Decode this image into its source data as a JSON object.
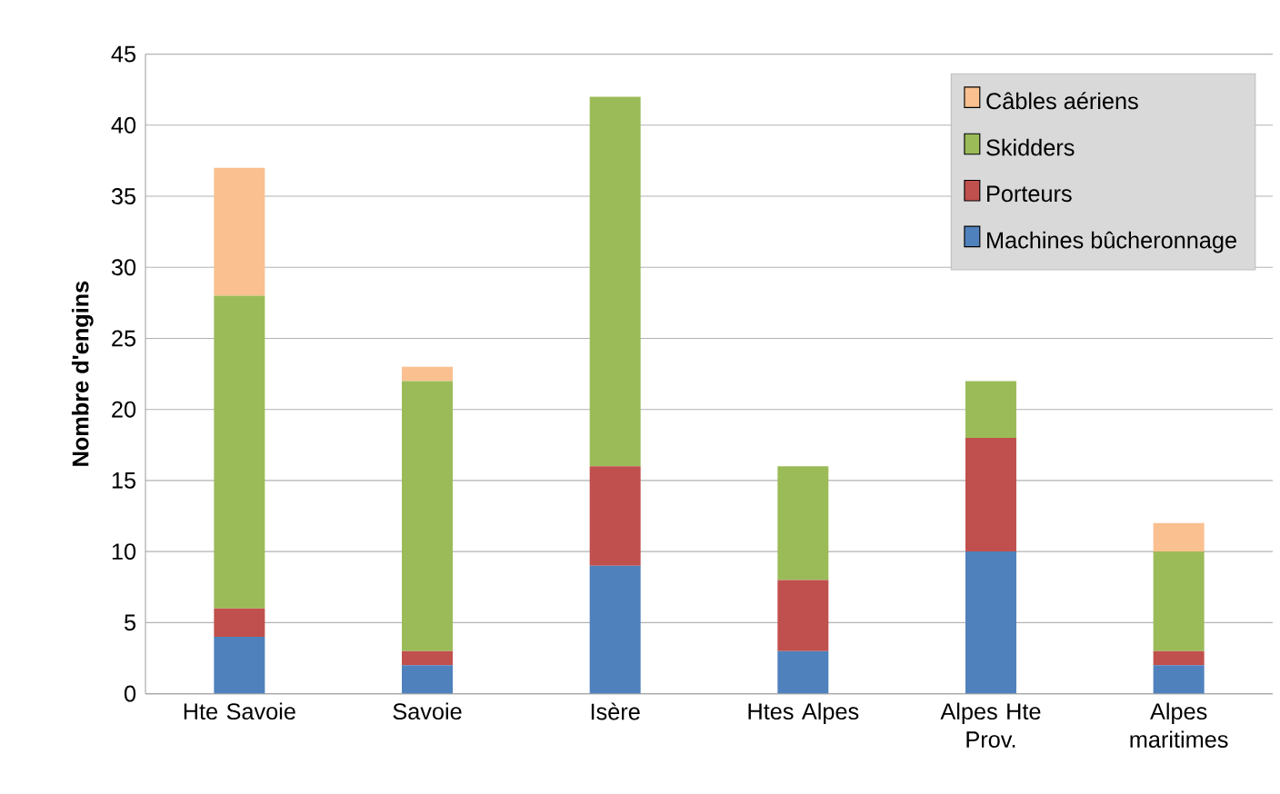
{
  "chart_data": {
    "type": "bar",
    "stacked": true,
    "ylabel": "Nombre d'engins",
    "categories": [
      "Hte Savoie",
      "Savoie",
      "Isère",
      "Htes Alpes",
      "Alpes Hte Prov.",
      "Alpes maritimes"
    ],
    "series": [
      {
        "name": "Machines bûcheronnage",
        "color": "#4f81bd",
        "values": [
          4,
          2,
          9,
          3,
          10,
          2
        ]
      },
      {
        "name": "Porteurs",
        "color": "#c0504d",
        "values": [
          2,
          1,
          7,
          5,
          8,
          1
        ]
      },
      {
        "name": "Skidders",
        "color": "#9bbb59",
        "values": [
          22,
          19,
          26,
          8,
          4,
          7
        ]
      },
      {
        "name": "Câbles aériens",
        "color": "#fac090",
        "values": [
          9,
          1,
          0,
          0,
          0,
          2
        ]
      }
    ],
    "ylim": [
      0,
      45
    ],
    "yticks": [
      0,
      5,
      10,
      15,
      20,
      25,
      30,
      35,
      40,
      45
    ],
    "grid": "y",
    "legend": "top right"
  }
}
